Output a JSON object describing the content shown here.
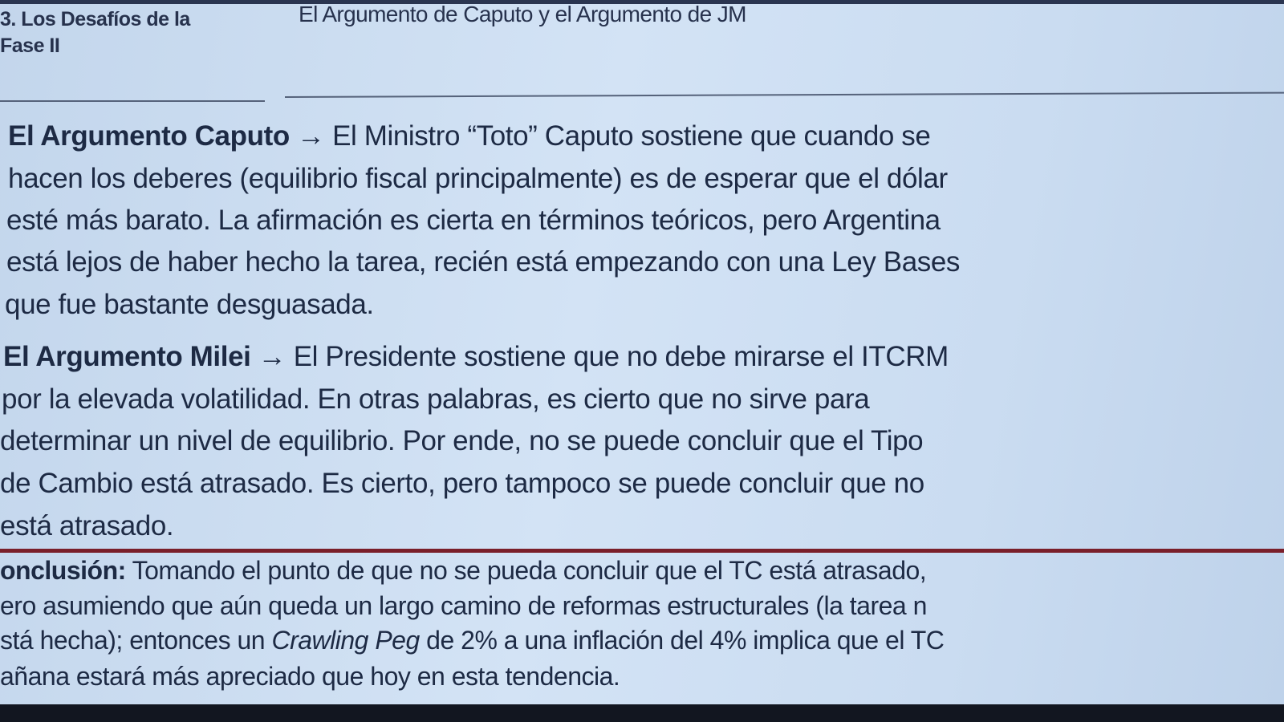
{
  "header": {
    "section": [
      "3. Los Desafíos de la",
      "Fase II"
    ],
    "title": "El Argumento de Caputo y el Argumento de JM"
  },
  "caputo": {
    "label": "El Argumento Caputo",
    "arrow": "→",
    "lines": [
      "El Ministro “Toto” Caputo sostiene que cuando se",
      "hacen los deberes (equilibrio fiscal principalmente) es de esperar que el dólar",
      "esté más barato. La afirmación es cierta en términos teóricos, pero Argentina",
      "está lejos de haber hecho la tarea, recién está empezando con una Ley Bases",
      "que fue bastante desguasada."
    ]
  },
  "milei": {
    "label": "El Argumento Milei",
    "arrow": "→",
    "lines": [
      "El Presidente sostiene que no debe mirarse el ITCRM",
      "por la elevada volatilidad. En otras palabras, es cierto que no sirve para",
      "determinar un nivel de equilibrio. Por ende, no se puede concluir que el Tipo",
      "de Cambio está atrasado. Es cierto, pero tampoco se puede concluir que no",
      "está atrasado."
    ]
  },
  "conclusion": {
    "label": "onclusión:",
    "line1": "Tomando el punto de que no se pueda concluir que el TC está atrasado,",
    "line2": "ero asumiendo que aún queda un largo camino de reformas estructurales (la tarea n",
    "line3_pre": "stá hecha); entonces un ",
    "line3_italic": "Crawling Peg",
    "line3_post": " de 2% a una inflación del 4% implica que el TC",
    "line4": "añana estará más apreciado que hoy en esta tendencia."
  },
  "colors": {
    "background": "#cfe0f3",
    "text": "#1d2a44",
    "divider": "#7a1f2a"
  }
}
